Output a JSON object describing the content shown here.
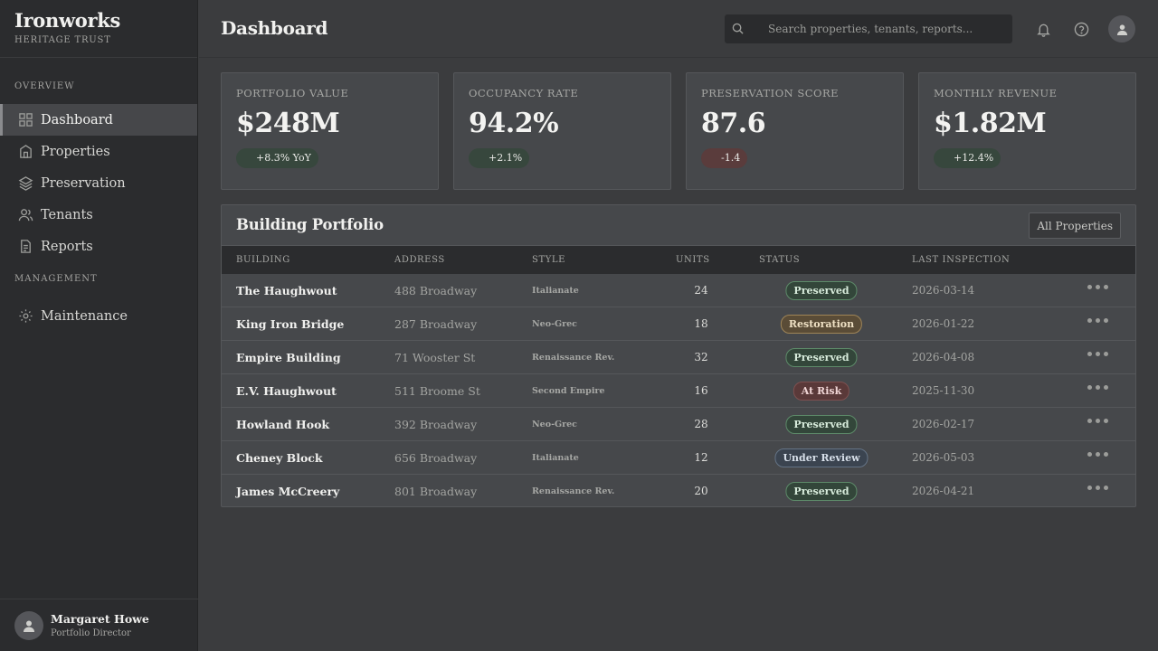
{
  "brand": {
    "title": "Ironworks",
    "subtitle": "HERITAGE TRUST"
  },
  "nav": {
    "overview_label": "OVERVIEW",
    "management_label": "MANAGEMENT",
    "items": [
      {
        "label": "Dashboard",
        "icon": "grid-icon"
      },
      {
        "label": "Properties",
        "icon": "building-icon"
      },
      {
        "label": "Preservation",
        "icon": "layers-icon"
      },
      {
        "label": "Tenants",
        "icon": "users-icon"
      },
      {
        "label": "Reports",
        "icon": "document-icon"
      }
    ],
    "management_items": [
      {
        "label": "Maintenance",
        "icon": "gear-icon"
      }
    ]
  },
  "user": {
    "name": "Margaret Howe",
    "role": "Portfolio Director"
  },
  "header": {
    "title": "Dashboard",
    "search_placeholder": "Search properties, tenants, reports..."
  },
  "stats": [
    {
      "label": "PORTFOLIO VALUE",
      "value": "$248M",
      "delta": "+8.3% YoY",
      "trend": "up"
    },
    {
      "label": "OCCUPANCY RATE",
      "value": "94.2%",
      "delta": "+2.1%",
      "trend": "up"
    },
    {
      "label": "PRESERVATION SCORE",
      "value": "87.6",
      "delta": "-1.4",
      "trend": "down"
    },
    {
      "label": "MONTHLY REVENUE",
      "value": "$1.82M",
      "delta": "+12.4%",
      "trend": "up"
    }
  ],
  "portfolio": {
    "title": "Building Portfolio",
    "filter_label": "All Properties",
    "columns": [
      "BUILDING",
      "ADDRESS",
      "STYLE",
      "UNITS",
      "STATUS",
      "LAST INSPECTION"
    ],
    "rows": [
      {
        "building": "The Haughwout",
        "address": "488 Broadway",
        "style": "Italianate",
        "units": "24",
        "status": "Preserved",
        "status_kind": "preserved",
        "inspection": "2026-03-14"
      },
      {
        "building": "King Iron Bridge",
        "address": "287 Broadway",
        "style": "Neo-Grec",
        "units": "18",
        "status": "Restoration",
        "status_kind": "restoration",
        "inspection": "2026-01-22"
      },
      {
        "building": "Empire Building",
        "address": "71 Wooster St",
        "style": "Renaissance Rev.",
        "units": "32",
        "status": "Preserved",
        "status_kind": "preserved",
        "inspection": "2026-04-08"
      },
      {
        "building": "E.V. Haughwout",
        "address": "511 Broome St",
        "style": "Second Empire",
        "units": "16",
        "status": "At Risk",
        "status_kind": "atrisk",
        "inspection": "2025-11-30"
      },
      {
        "building": "Howland Hook",
        "address": "392 Broadway",
        "style": "Neo-Grec",
        "units": "28",
        "status": "Preserved",
        "status_kind": "preserved",
        "inspection": "2026-02-17"
      },
      {
        "building": "Cheney Block",
        "address": "656 Broadway",
        "style": "Italianate",
        "units": "12",
        "status": "Under Review",
        "status_kind": "review",
        "inspection": "2026-05-03"
      },
      {
        "building": "James McCreery",
        "address": "801 Broadway",
        "style": "Renaissance Rev.",
        "units": "20",
        "status": "Preserved",
        "status_kind": "preserved",
        "inspection": "2026-04-21"
      }
    ]
  },
  "colors": {
    "background": "#3b3c3e",
    "sidebar": "#2b2c2e",
    "card": "#46484b",
    "preserved": "#33463a",
    "restoration": "#5a4c37",
    "at_risk": "#5a3939",
    "under_review": "#3b4450"
  }
}
